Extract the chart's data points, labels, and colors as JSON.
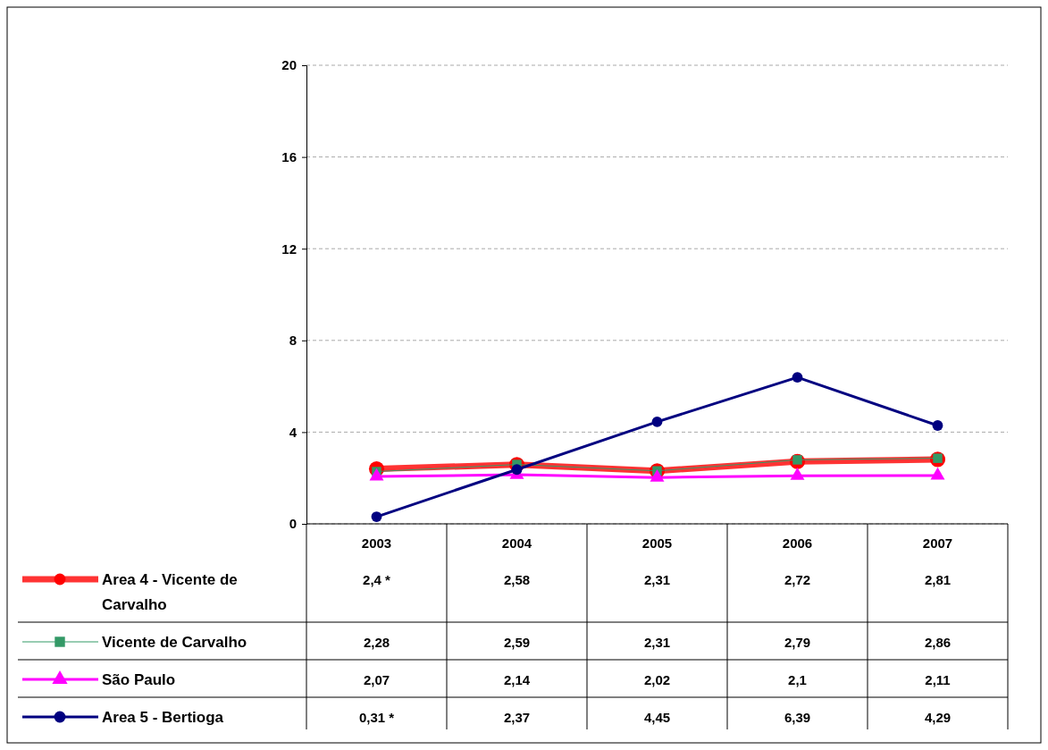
{
  "chart_data": {
    "type": "line",
    "categories": [
      "2003",
      "2004",
      "2005",
      "2006",
      "2007"
    ],
    "series": [
      {
        "name": "Area 4 - Vicente de Carvalho",
        "color": "#ff0000",
        "marker": "circle",
        "values": [
          2.4,
          2.58,
          2.31,
          2.72,
          2.81
        ],
        "value_labels": [
          "2,4 *",
          "2,58",
          "2,31",
          "2,72",
          "2,81"
        ]
      },
      {
        "name": "Vicente de Carvalho",
        "color": "#339966",
        "marker": "square",
        "values": [
          2.28,
          2.59,
          2.31,
          2.79,
          2.86
        ],
        "value_labels": [
          "2,28",
          "2,59",
          "2,31",
          "2,79",
          "2,86"
        ]
      },
      {
        "name": "São Paulo",
        "color": "#ff00ff",
        "marker": "triangle",
        "values": [
          2.07,
          2.14,
          2.02,
          2.1,
          2.11
        ],
        "value_labels": [
          "2,07",
          "2,14",
          "2,02",
          "2,1",
          "2,11"
        ]
      },
      {
        "name": "Area 5 - Bertioga",
        "color": "#000080",
        "marker": "circle",
        "values": [
          0.31,
          2.37,
          4.45,
          6.39,
          4.29
        ],
        "value_labels": [
          "0,31 *",
          "2,37",
          "4,45",
          "6,39",
          "4,29"
        ]
      }
    ],
    "ylim": [
      0,
      20
    ],
    "yticks": [
      0,
      4,
      8,
      12,
      16,
      20
    ],
    "grid": "y",
    "legend": "bottom left"
  }
}
